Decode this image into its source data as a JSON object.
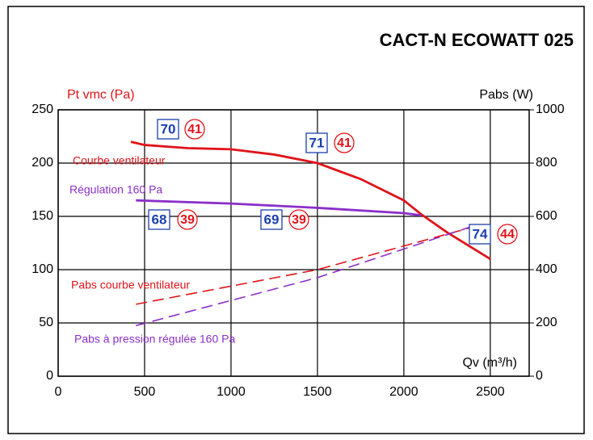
{
  "chart_data": {
    "type": "line",
    "title": "CACT-N ECOWATT 025",
    "y_label": "Pt vmc (Pa)",
    "y2_label": "Pabs (W)",
    "x_label": "Qv (m³/h)",
    "xlim": [
      0,
      2725
    ],
    "xticks": [
      0,
      500,
      1000,
      1500,
      2000,
      2500
    ],
    "ylim": [
      0,
      250
    ],
    "yticks": [
      0,
      50,
      100,
      150,
      200,
      250
    ],
    "y2lim": [
      0,
      1000
    ],
    "y2ticks": [
      0,
      200,
      400,
      600,
      800,
      1000
    ],
    "grid": true,
    "series": [
      {
        "name": "Courbe ventilateur",
        "color": "#e0141a",
        "dash": false,
        "x": [
          420,
          500,
          750,
          1000,
          1250,
          1500,
          1750,
          2000,
          2100,
          2250,
          2500
        ],
        "values": [
          220,
          217,
          214,
          213,
          208,
          200,
          185,
          165,
          152,
          135,
          110
        ]
      },
      {
        "name": "Régulation 160 Pa",
        "color": "#8b2fc9",
        "dash": false,
        "x": [
          450,
          1000,
          1500,
          2000,
          2100
        ],
        "values": [
          165,
          162,
          158,
          153,
          151
        ]
      },
      {
        "name": "Pabs courbe ventilateur",
        "color": "#e0141a",
        "dash": true,
        "axis": "y2",
        "x": [
          450,
          1500,
          2400
        ],
        "values": [
          270,
          400,
          560
        ]
      },
      {
        "name": "Pabs à pression régulée 160 Pa",
        "color": "#8b2fc9",
        "dash": true,
        "axis": "y2",
        "x": [
          450,
          1500,
          2430
        ],
        "values": [
          190,
          370,
          570
        ]
      }
    ],
    "annotations": [
      {
        "box": 70,
        "circle": 41
      },
      {
        "box": 71,
        "circle": 41
      },
      {
        "box": 68,
        "circle": 39
      },
      {
        "box": 69,
        "circle": 39
      },
      {
        "box": 74,
        "circle": 44
      }
    ]
  }
}
